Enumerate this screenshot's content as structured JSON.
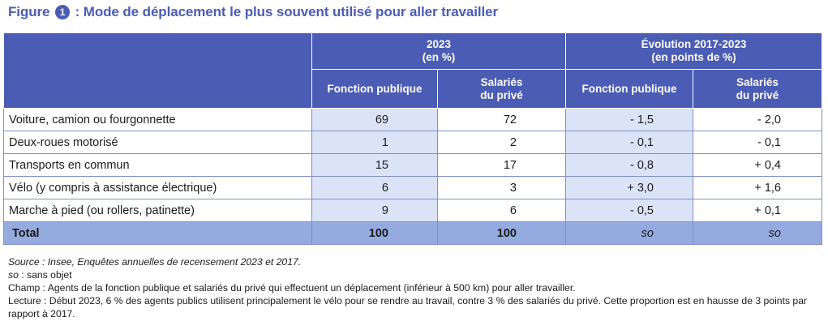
{
  "figure": {
    "label": "Figure",
    "number": "1",
    "title": ": Mode de déplacement le plus souvent utilisé pour aller travailler"
  },
  "table": {
    "group_headers": [
      {
        "line1": "2023",
        "line2": "(en %)"
      },
      {
        "line1": "Évolution 2017-2023",
        "line2": "(en points de %)"
      }
    ],
    "sub_headers": [
      {
        "line1": "Fonction publique",
        "line2": ""
      },
      {
        "line1": "Salariés",
        "line2": "du privé"
      },
      {
        "line1": "Fonction publique",
        "line2": ""
      },
      {
        "line1": "Salariés",
        "line2": "du privé"
      }
    ],
    "rows": [
      {
        "label": "Voiture, camion ou fourgonnette",
        "fp_2023": "69",
        "sp_2023": "72",
        "fp_evol": "- 1,5",
        "sp_evol": "- 2,0"
      },
      {
        "label": "Deux-roues motorisé",
        "fp_2023": "1",
        "sp_2023": "2",
        "fp_evol": "- 0,1",
        "sp_evol": "- 0,1"
      },
      {
        "label": "Transports en commun",
        "fp_2023": "15",
        "sp_2023": "17",
        "fp_evol": "- 0,8",
        "sp_evol": "+ 0,4"
      },
      {
        "label": "Vélo (y compris à assistance électrique)",
        "fp_2023": "6",
        "sp_2023": "3",
        "fp_evol": "+ 3,0",
        "sp_evol": "+ 1,6"
      },
      {
        "label": "Marche à pied (ou rollers, patinette)",
        "fp_2023": "9",
        "sp_2023": "6",
        "fp_evol": "- 0,5",
        "sp_evol": "+ 0,1"
      }
    ],
    "total": {
      "label": "Total",
      "fp_2023": "100",
      "sp_2023": "100",
      "fp_evol": "so",
      "sp_evol": "so"
    }
  },
  "notes": {
    "source": "Source : Insee, Enquêtes annuelles de recensement 2023 et 2017.",
    "so_abbr": "so",
    "so_text": " : sans objet",
    "champ": "Champ : Agents de la fonction publique et salariés du privé qui effectuent un déplacement (inférieur à 500 km) pour aller travailler.",
    "lecture": "Lecture : Début 2023, 6 % des agents publics utilisent principalement le vélo pour se rendre au travail, contre 3 % des salariés du privé. Cette proportion est en hausse de 3 points par rapport à 2017."
  },
  "colors": {
    "title": "#4a5cb3",
    "header_bg": "#4a5cb3",
    "highlight_col": "#dbe3f7",
    "total_row": "#95abe0"
  }
}
